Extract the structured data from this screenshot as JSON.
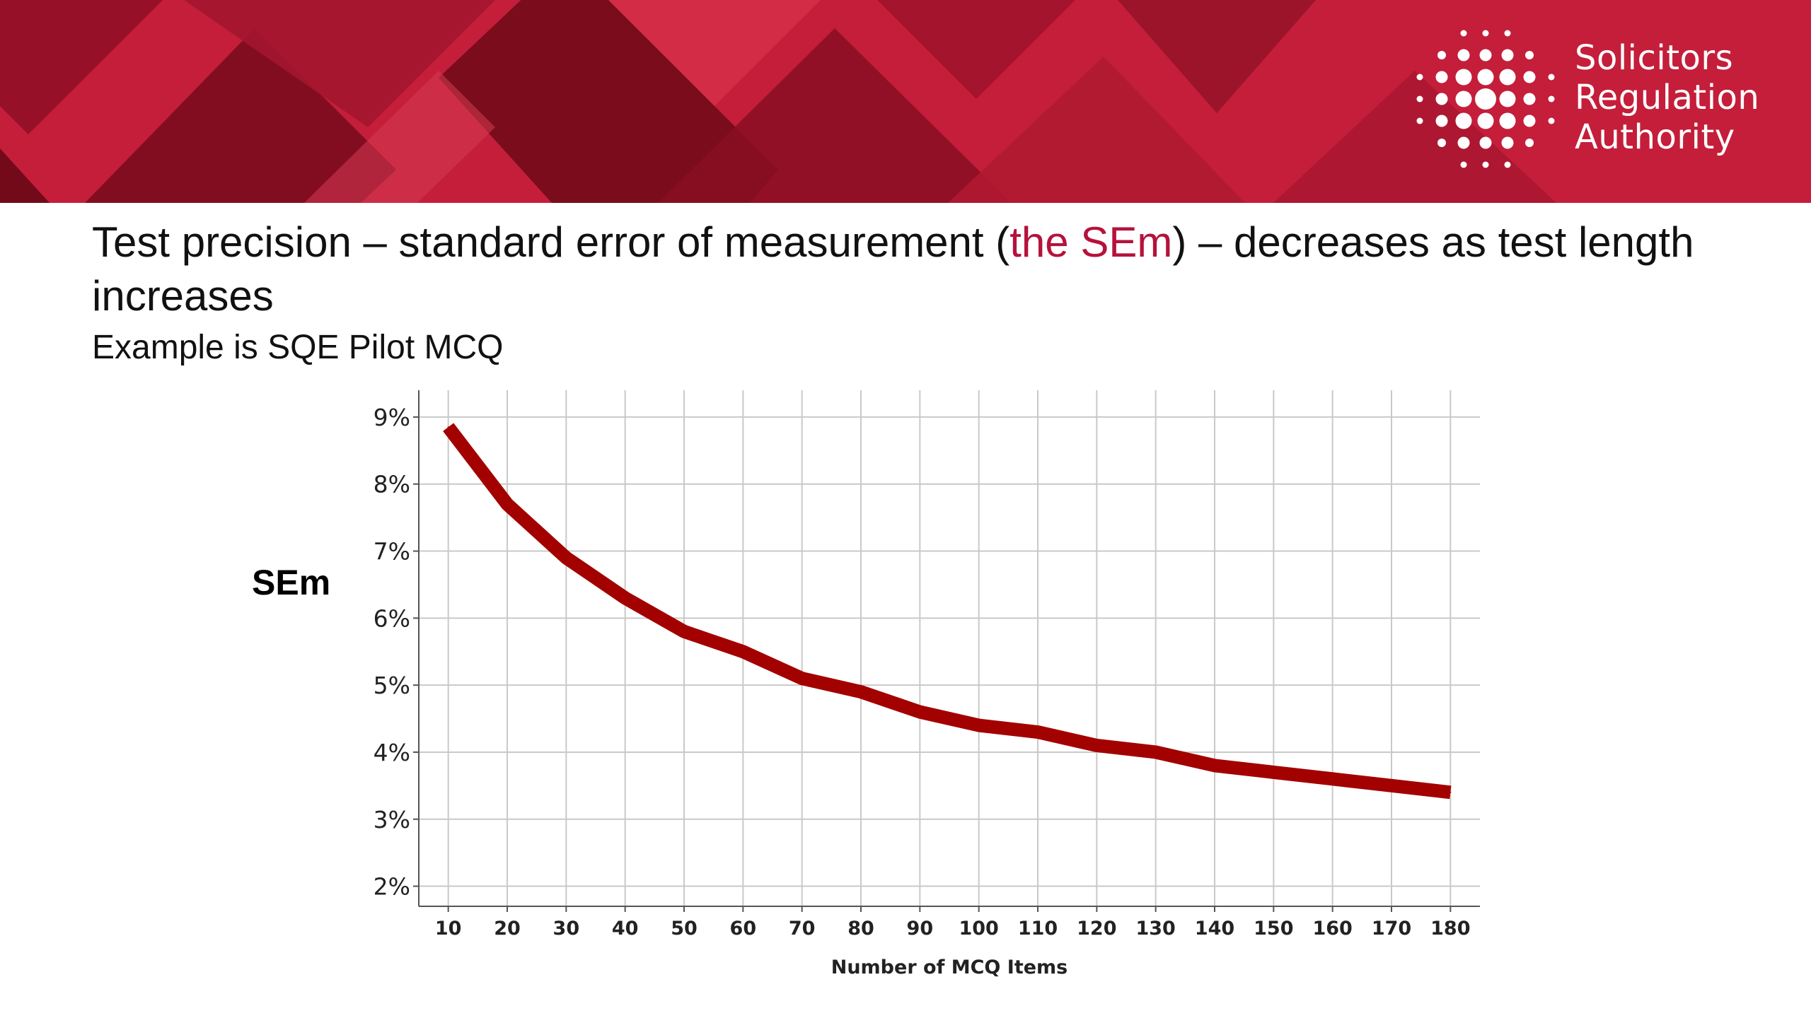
{
  "header": {
    "logo_lines": [
      "Solicitors",
      "Regulation",
      "Authority"
    ],
    "banner_color": "#c41e3a"
  },
  "slide": {
    "title_part1": "Test precision – standard error of measurement (",
    "title_accent": "the SEm",
    "title_part2": ") – decreases as test length increases",
    "subtitle": "Example is SQE Pilot MCQ",
    "accent_color": "#b5123c"
  },
  "chart_data": {
    "type": "line",
    "title": "",
    "xlabel": "Number of MCQ Items",
    "ylabel": "SEm",
    "x": [
      10,
      20,
      30,
      40,
      50,
      60,
      70,
      80,
      90,
      100,
      110,
      120,
      130,
      140,
      150,
      160,
      170,
      180
    ],
    "y_ticks": [
      "2%",
      "3%",
      "4%",
      "5%",
      "6%",
      "7%",
      "8%",
      "9%"
    ],
    "ylim": [
      1.7,
      9.4
    ],
    "series": [
      {
        "values": [
          8.85,
          7.7,
          6.9,
          6.3,
          5.8,
          5.5,
          5.1,
          4.9,
          4.6,
          4.4,
          4.3,
          4.1,
          4.0,
          3.8,
          3.7,
          3.6,
          3.5,
          3.4
        ],
        "color": "#a30000"
      }
    ],
    "grid": true
  }
}
